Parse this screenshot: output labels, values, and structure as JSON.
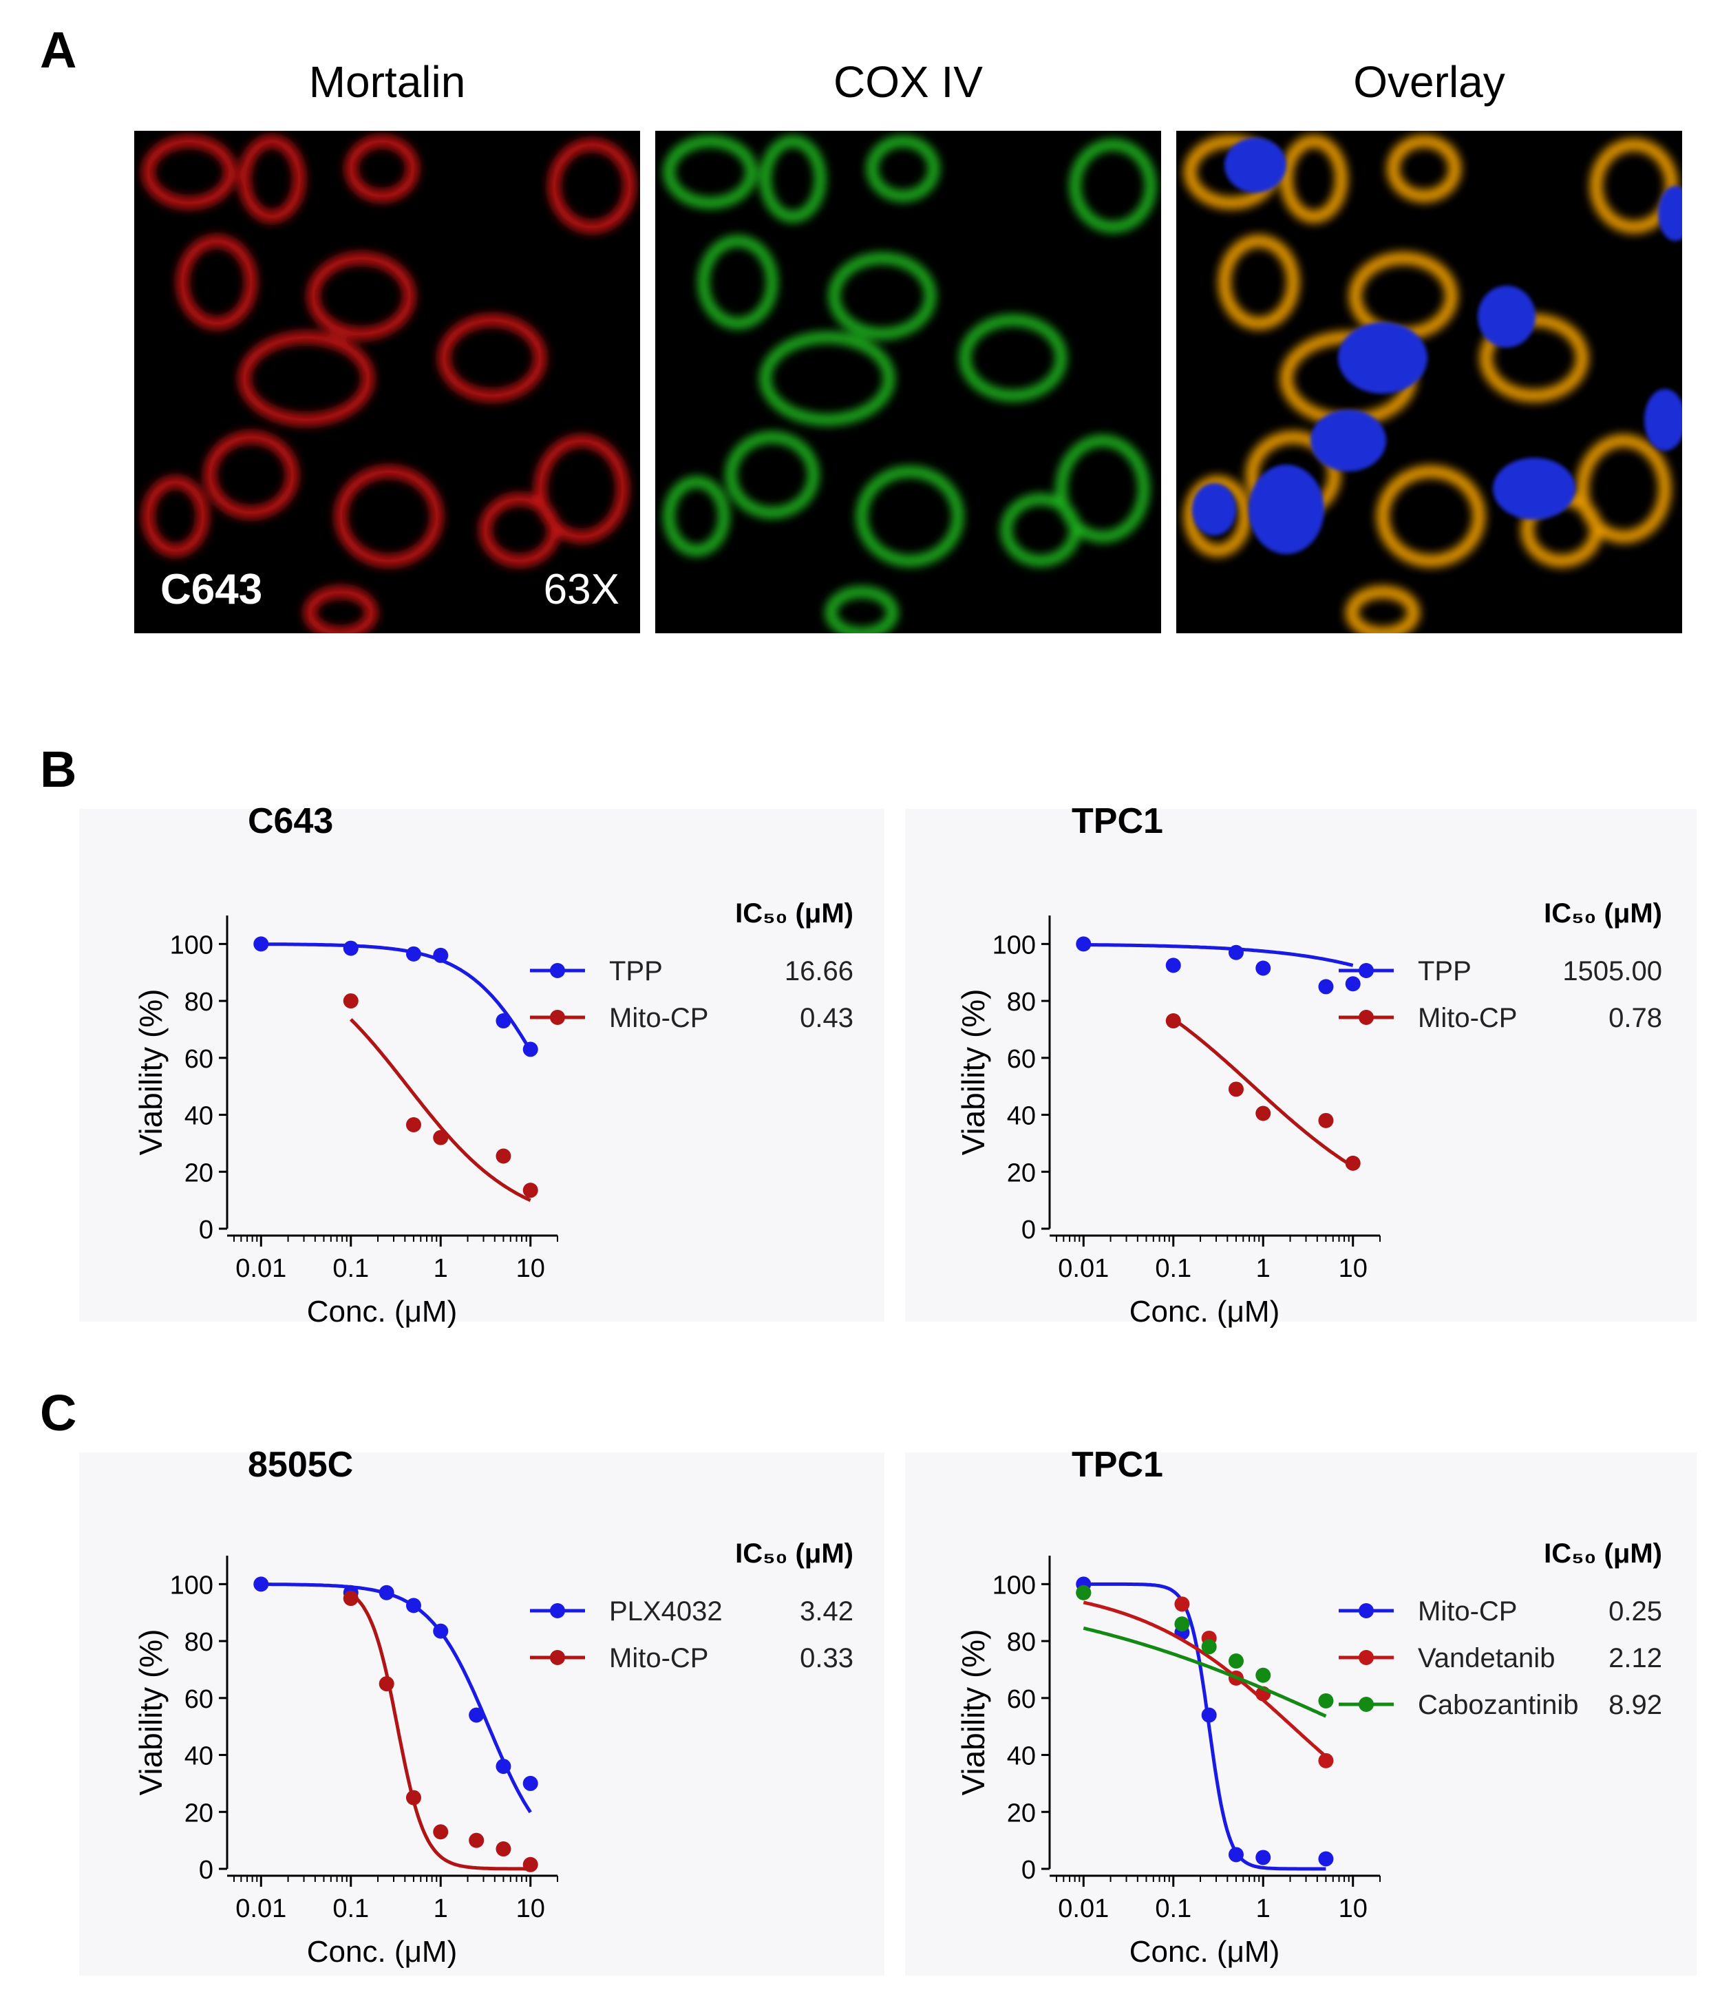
{
  "panels": {
    "A": {
      "letter": "A"
    },
    "B": {
      "letter": "B"
    },
    "C": {
      "letter": "C"
    }
  },
  "microscopy": {
    "titles": [
      "Mortalin",
      "COX IV",
      "Overlay"
    ],
    "cell_line_label": "C643",
    "magnification_label": "63X",
    "colors": {
      "mortalin": "#e01818",
      "cox": "#22c422",
      "overlay": "#f2a000",
      "nucleus": "#1f2fd6"
    }
  },
  "chart_data": [
    {
      "type": "line",
      "panel": "B",
      "title": "C643",
      "xlabel": "Conc. (μM)",
      "ylabel": "Viability (%)",
      "x_scale": "log",
      "xlim": [
        0.005,
        20
      ],
      "ylim": [
        0,
        110
      ],
      "x_ticks": [
        0.01,
        0.1,
        1,
        10
      ],
      "x_tick_labels": [
        "0.01",
        "0.1",
        "1",
        "10"
      ],
      "y_ticks": [
        0,
        20,
        40,
        60,
        80,
        100
      ],
      "y_tick_labels": [
        "0",
        "20",
        "40",
        "60",
        "80",
        "100"
      ],
      "legend_header": "IC₅₀ (μM)",
      "legend_position": "right",
      "series": [
        {
          "name": "TPP",
          "color": "#1a1ae6",
          "ic50": "16.66",
          "x": [
            0.01,
            0.1,
            0.5,
            1,
            5,
            10
          ],
          "y": [
            100,
            98.5,
            96.5,
            96,
            73,
            63
          ],
          "fit": {
            "top": 100,
            "bottom": 0,
            "ic50": 16.66,
            "hill": 1.0
          }
        },
        {
          "name": "Mito-CP",
          "color": "#b01414",
          "ic50": "0.43",
          "x": [
            0.1,
            0.5,
            1,
            5,
            10
          ],
          "y": [
            80,
            36.5,
            32,
            25.5,
            13.5
          ],
          "fit": {
            "top": 100,
            "bottom": 0,
            "ic50": 0.43,
            "hill": 0.7
          }
        }
      ]
    },
    {
      "type": "line",
      "panel": "B",
      "title": "TPC1",
      "xlabel": "Conc. (μM)",
      "ylabel": "Viability (%)",
      "x_scale": "log",
      "xlim": [
        0.005,
        20
      ],
      "ylim": [
        0,
        110
      ],
      "x_ticks": [
        0.01,
        0.1,
        1,
        10
      ],
      "x_tick_labels": [
        "0.01",
        "0.1",
        "1",
        "10"
      ],
      "y_ticks": [
        0,
        20,
        40,
        60,
        80,
        100
      ],
      "y_tick_labels": [
        "0",
        "20",
        "40",
        "60",
        "80",
        "100"
      ],
      "legend_header": "IC₅₀ (μM)",
      "legend_position": "right",
      "series": [
        {
          "name": "TPP",
          "color": "#1a1ae6",
          "ic50": "1505.00",
          "x": [
            0.01,
            0.1,
            0.5,
            1,
            5,
            10
          ],
          "y": [
            100,
            92.5,
            97,
            91.5,
            85,
            86
          ],
          "fit": {
            "top": 100,
            "bottom": 0,
            "ic50": 1505,
            "hill": 0.5
          }
        },
        {
          "name": "Mito-CP",
          "color": "#b01414",
          "ic50": "0.78",
          "x": [
            0.1,
            0.5,
            1,
            5,
            10
          ],
          "y": [
            73,
            49,
            40.5,
            38,
            23
          ],
          "fit": {
            "top": 100,
            "bottom": 0,
            "ic50": 0.78,
            "hill": 0.5
          }
        }
      ]
    },
    {
      "type": "line",
      "panel": "C",
      "title": "8505C",
      "xlabel": "Conc. (μM)",
      "ylabel": "Viability (%)",
      "x_scale": "log",
      "xlim": [
        0.005,
        20
      ],
      "ylim": [
        0,
        110
      ],
      "x_ticks": [
        0.01,
        0.1,
        1,
        10
      ],
      "x_tick_labels": [
        "0.01",
        "0.1",
        "1",
        "10"
      ],
      "y_ticks": [
        0,
        20,
        40,
        60,
        80,
        100
      ],
      "y_tick_labels": [
        "0",
        "20",
        "40",
        "60",
        "80",
        "100"
      ],
      "legend_header": "IC₅₀ (μM)",
      "legend_position": "right",
      "series": [
        {
          "name": "PLX4032",
          "color": "#1a1ae6",
          "ic50": "3.42",
          "x": [
            0.01,
            0.1,
            0.25,
            0.5,
            1,
            2.5,
            5,
            10
          ],
          "y": [
            100,
            97,
            97,
            92.5,
            83.5,
            54,
            36,
            30
          ],
          "fit": {
            "top": 100,
            "bottom": 0,
            "ic50": 3.42,
            "hill": 1.3
          }
        },
        {
          "name": "Mito-CP",
          "color": "#b01414",
          "ic50": "0.33",
          "x": [
            0.1,
            0.25,
            0.5,
            1,
            2.5,
            5,
            10
          ],
          "y": [
            95,
            65,
            25,
            13,
            10,
            7,
            1.5
          ],
          "fit": {
            "top": 100,
            "bottom": 0,
            "ic50": 0.33,
            "hill": 2.8
          }
        }
      ]
    },
    {
      "type": "line",
      "panel": "C",
      "title": "TPC1",
      "xlabel": "Conc. (μM)",
      "ylabel": "Viability (%)",
      "x_scale": "log",
      "xlim": [
        0.005,
        20
      ],
      "ylim": [
        0,
        110
      ],
      "x_ticks": [
        0.01,
        0.1,
        1,
        10
      ],
      "x_tick_labels": [
        "0.01",
        "0.1",
        "1",
        "10"
      ],
      "y_ticks": [
        0,
        20,
        40,
        60,
        80,
        100
      ],
      "y_tick_labels": [
        "0",
        "20",
        "40",
        "60",
        "80",
        "100"
      ],
      "legend_header": "IC₅₀ (μM)",
      "legend_position": "right",
      "series": [
        {
          "name": "Mito-CP",
          "color": "#1a1ae6",
          "ic50": "0.25",
          "x": [
            0.01,
            0.125,
            0.25,
            0.5,
            1,
            5
          ],
          "y": [
            100,
            83,
            54,
            5,
            4,
            3.5
          ],
          "fit": {
            "top": 100,
            "bottom": 0,
            "ic50": 0.25,
            "hill": 4.0
          }
        },
        {
          "name": "Vandetanib",
          "color": "#c01818",
          "ic50": "2.12",
          "x": [
            0.01,
            0.125,
            0.25,
            0.5,
            1,
            5
          ],
          "y": [
            97,
            93,
            81,
            67,
            61.5,
            38
          ],
          "fit": {
            "top": 100,
            "bottom": 0,
            "ic50": 2.12,
            "hill": 0.5
          }
        },
        {
          "name": "Cabozantinib",
          "color": "#138a13",
          "ic50": "8.92",
          "x": [
            0.01,
            0.125,
            0.25,
            0.5,
            1,
            5
          ],
          "y": [
            97,
            86,
            78,
            73,
            68,
            59
          ],
          "fit": {
            "top": 100,
            "bottom": 0,
            "ic50": 8.92,
            "hill": 0.25
          }
        }
      ]
    }
  ]
}
